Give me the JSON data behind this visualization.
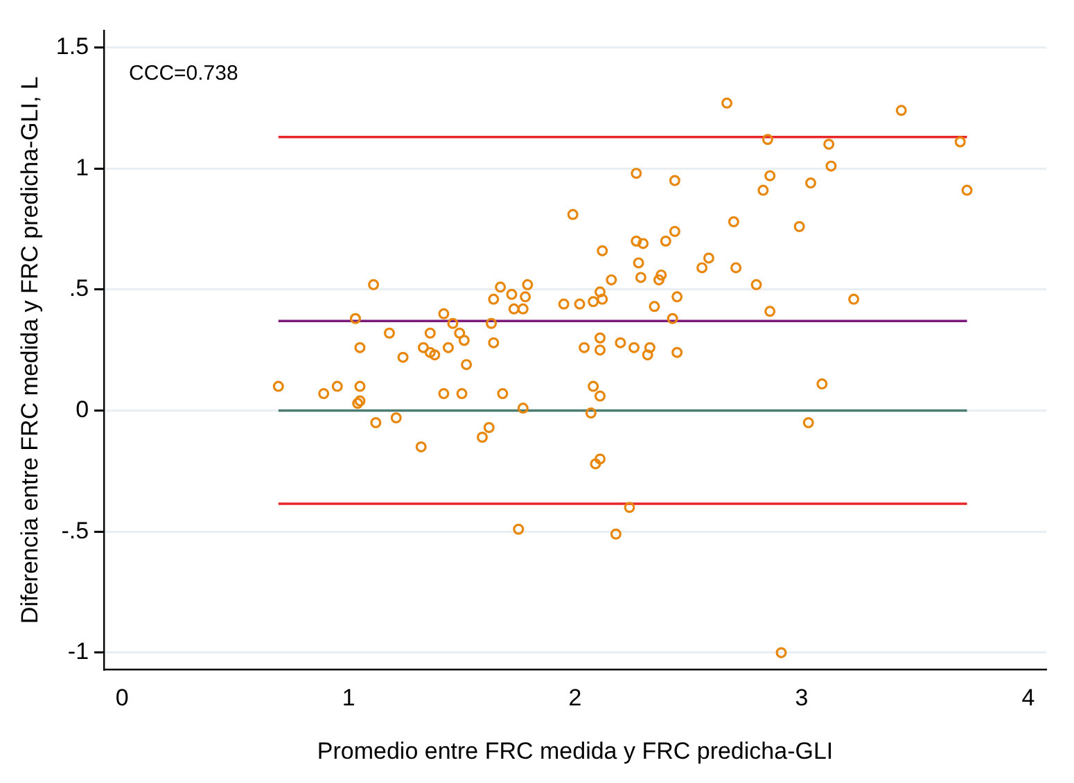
{
  "chart_data": {
    "type": "scatter",
    "xlabel": "Promedio entre FRC medida y FRC predicha-GLI",
    "ylabel": "Diferencia entre FRC medida y FRC predicha-GLI, L",
    "annotations": [
      "CCC=0.738"
    ],
    "xlim": [
      -0.08,
      4.08
    ],
    "xticks": [
      0,
      1,
      2,
      3,
      4
    ],
    "ylim": [
      -1.07,
      1.57
    ],
    "yticks": [
      {
        "value": -1,
        "label": "-1"
      },
      {
        "value": -0.5,
        "label": "-.5"
      },
      0,
      {
        "value": 0.5,
        "label": ".5"
      },
      1,
      {
        "value": 1.5,
        "label": "1.5"
      }
    ],
    "grid": "y",
    "legend": false,
    "marker": "circle",
    "ref_lines": [
      {
        "axis": "y",
        "value": 1.13,
        "color": "#e8262a"
      },
      {
        "axis": "y",
        "value": 0.37,
        "color": "#7b1a7b"
      },
      {
        "axis": "y",
        "value": 0,
        "color": "#4a7a70"
      },
      {
        "axis": "y",
        "value": -0.385,
        "color": "#e8262a"
      }
    ],
    "series": [
      {
        "color": "#e8870e",
        "x": [
          2.27,
          1.99,
          2.27,
          2.3,
          2.12,
          2.28,
          2.29,
          2.16,
          1.11,
          1.67,
          1.79,
          1.72,
          1.78,
          1.64,
          1.73,
          1.77,
          1.95,
          2.02,
          2.08,
          2.11,
          2.12,
          2.35,
          1.03,
          1.42,
          1.46,
          1.63,
          1.18,
          1.36,
          1.49,
          1.51,
          1.05,
          1.33,
          1.36,
          1.38,
          1.44,
          1.64,
          1.24,
          1.52,
          2.04,
          2.11,
          2.11,
          2.2,
          2.26,
          2.33,
          2.32,
          0.69,
          0.89,
          0.95,
          1.05,
          1.04,
          1.05,
          1.42,
          1.5,
          1.68,
          1.77,
          2.08,
          2.11,
          2.07,
          1.12,
          1.21,
          1.32,
          1.59,
          1.62,
          2.09,
          2.11,
          2.24,
          1.75,
          2.18,
          3.03,
          2.91,
          2.67,
          3.44,
          2.85,
          3.12,
          3.7,
          3.13,
          2.44,
          2.86,
          2.83,
          3.04,
          3.73,
          2.7,
          2.99,
          2.44,
          2.4,
          2.59,
          2.56,
          2.71,
          2.38,
          2.37,
          2.8,
          2.45,
          3.23,
          2.43,
          2.86,
          2.45,
          3.09
        ],
        "values": [
          0.98,
          0.81,
          0.7,
          0.69,
          0.66,
          0.61,
          0.55,
          0.54,
          0.52,
          0.51,
          0.52,
          0.48,
          0.47,
          0.46,
          0.42,
          0.42,
          0.44,
          0.44,
          0.45,
          0.49,
          0.46,
          0.43,
          0.38,
          0.4,
          0.36,
          0.36,
          0.32,
          0.32,
          0.32,
          0.29,
          0.26,
          0.26,
          0.24,
          0.23,
          0.26,
          0.28,
          0.22,
          0.19,
          0.26,
          0.3,
          0.25,
          0.28,
          0.26,
          0.26,
          0.23,
          0.1,
          0.07,
          0.1,
          0.1,
          0.03,
          0.04,
          0.07,
          0.07,
          0.07,
          0.01,
          0.1,
          0.06,
          -0.01,
          -0.05,
          -0.03,
          -0.15,
          -0.11,
          -0.07,
          -0.22,
          -0.2,
          -0.4,
          -0.49,
          -0.51,
          -0.05,
          -1.0,
          1.27,
          1.24,
          1.12,
          1.1,
          1.11,
          1.01,
          0.95,
          0.97,
          0.91,
          0.94,
          0.91,
          0.78,
          0.76,
          0.74,
          0.7,
          0.63,
          0.59,
          0.59,
          0.56,
          0.54,
          0.52,
          0.47,
          0.46,
          0.38,
          0.41,
          0.24,
          0.11
        ]
      }
    ]
  }
}
